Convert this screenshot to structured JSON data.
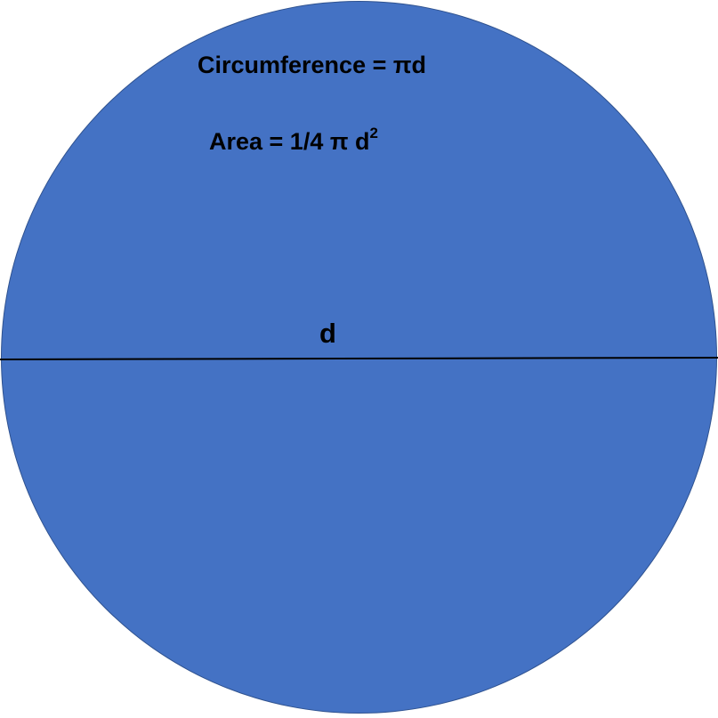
{
  "formulas": {
    "circumference": "Circumference = πd",
    "area_prefix": "Area = 1/4 π d",
    "area_exponent": "2"
  },
  "diameter_label": "d",
  "colors": {
    "circle_fill": "#4472c4",
    "circle_border": "#2f528f",
    "line": "#000000",
    "text": "#000000"
  }
}
